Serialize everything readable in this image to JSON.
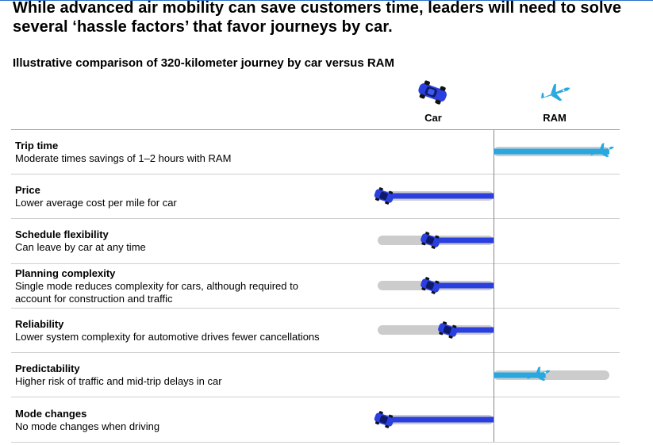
{
  "header": {
    "title_line1": "While advanced air mobility can save customers time, leaders will need to solve",
    "title_line2": "several ‘hassle factors’ that favor journeys by car.",
    "subtitle": "Illustrative comparison of 320-kilometer journey by car versus RAM"
  },
  "columns": {
    "car": "Car",
    "ram": "RAM"
  },
  "colors": {
    "car": "#2a3fe0",
    "ram": "#29a8e0",
    "track": "#cccccc",
    "axis": "#8a8a8a"
  },
  "icons": {
    "car": "car-icon",
    "ram": "plane-icon"
  },
  "chart_data": {
    "type": "bar",
    "scale": "advantage (0 = equal, 1 = maximum)",
    "rows": [
      {
        "label": "Trip time",
        "description": "Moderate times savings of 1–2 hours with RAM",
        "favors": "RAM",
        "advantage": 1.0
      },
      {
        "label": "Price",
        "description": "Lower average cost per mile for car",
        "favors": "Car",
        "advantage": 1.0
      },
      {
        "label": "Schedule flexibility",
        "description": "Can leave by car at any time",
        "favors": "Car",
        "advantage": 0.6
      },
      {
        "label": "Planning complexity",
        "description": "Single mode reduces complexity for cars, although required to account for construction and traffic",
        "favors": "Car",
        "advantage": 0.6
      },
      {
        "label": "Reliability",
        "description": "Lower system complexity for automotive drives fewer cancellations",
        "favors": "Car",
        "advantage": 0.45
      },
      {
        "label": "Predictability",
        "description": "Higher risk of traffic and mid-trip delays in car",
        "favors": "RAM",
        "advantage": 0.45
      },
      {
        "label": "Mode changes",
        "description": "No mode changes when driving",
        "favors": "Car",
        "advantage": 1.0
      }
    ]
  }
}
